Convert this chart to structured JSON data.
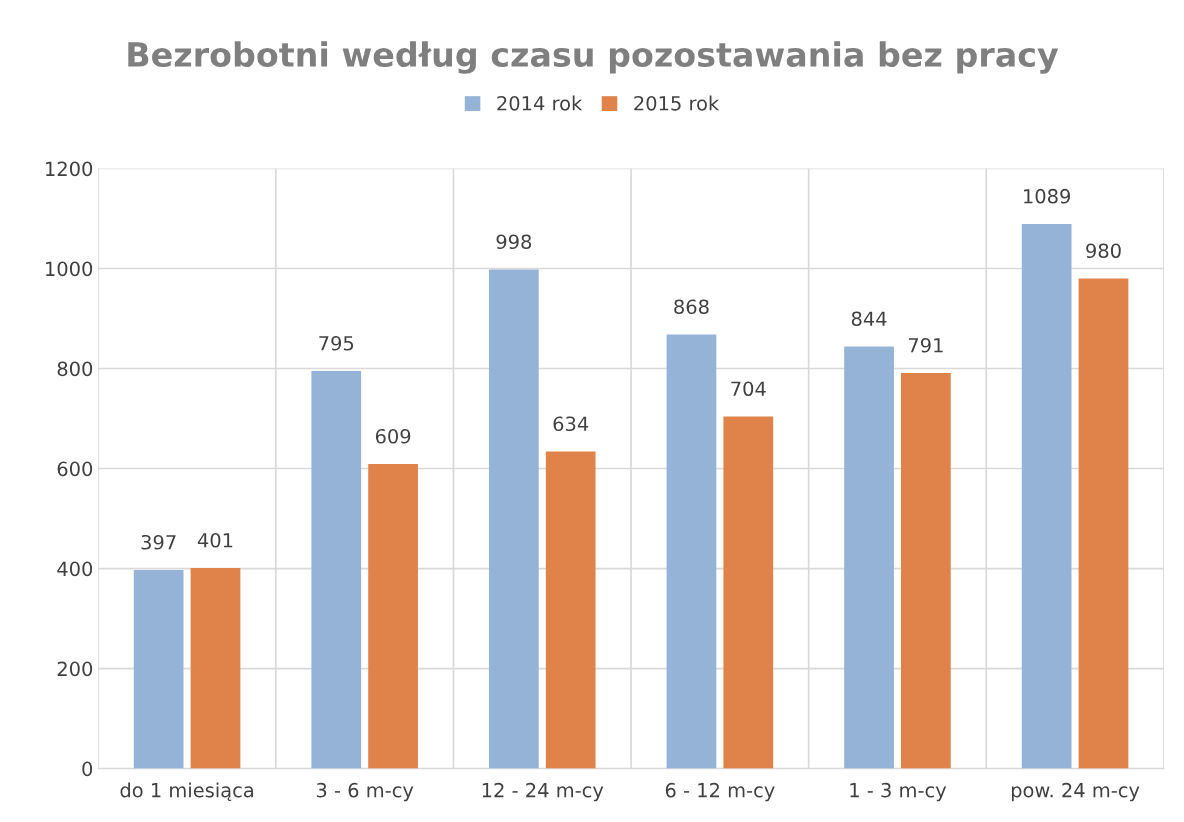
{
  "chart_data": {
    "type": "bar",
    "title": "Bezrobotni według czasu pozostawania bez pracy",
    "categories": [
      "do 1 miesiąca",
      "3 - 6 m-cy",
      "12 - 24 m-cy",
      "6 - 12 m-cy",
      "1 - 3 m-cy",
      "pow. 24 m-cy"
    ],
    "series": [
      {
        "name": "2014 rok",
        "color": "#95b3d7",
        "values": [
          397,
          795,
          998,
          868,
          844,
          1089
        ]
      },
      {
        "name": "2015 rok",
        "color": "#e0834a",
        "values": [
          401,
          609,
          634,
          704,
          791,
          980
        ]
      }
    ],
    "ylim": [
      0,
      1200
    ],
    "yticks": [
      0,
      200,
      400,
      600,
      800,
      1000,
      1200
    ],
    "grid": true,
    "legend": "top",
    "data_labels": true
  }
}
